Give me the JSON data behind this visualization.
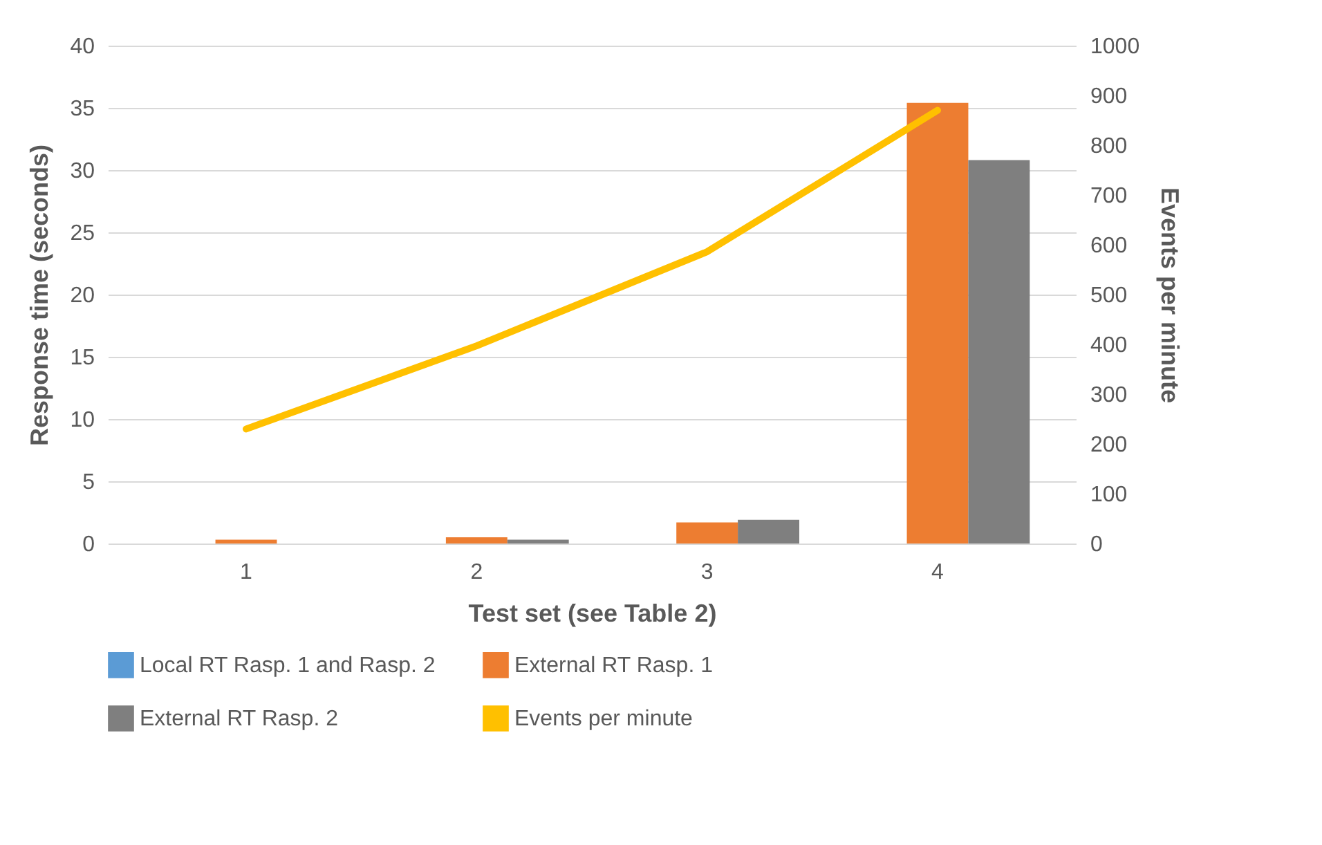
{
  "chart_data": {
    "type": "bar",
    "xlabel": "Test set (see Table 2)",
    "ylabel": "Response time (seconds)",
    "y2label": "Events per minute",
    "categories": [
      "1",
      "2",
      "3",
      "4"
    ],
    "series": [
      {
        "name": "Local RT Rasp. 1 and Rasp. 2",
        "color": "#5b9bd5",
        "values": [
          0,
          0,
          0,
          0
        ]
      },
      {
        "name": "External RT Rasp. 1",
        "color": "#ed7d31",
        "values": [
          0.3,
          0.5,
          1.7,
          35.4
        ]
      },
      {
        "name": "External RT Rasp. 2",
        "color": "#7f7f7f",
        "values": [
          0,
          0.3,
          1.9,
          30.8
        ]
      },
      {
        "name": "Events per minute",
        "color": "#ffc000",
        "type": "line",
        "axis": "y2",
        "values": [
          230,
          397,
          586,
          870
        ]
      }
    ],
    "ylim": [
      0,
      40
    ],
    "yticks": [
      0,
      5,
      10,
      15,
      20,
      25,
      30,
      35,
      40
    ],
    "y2lim": [
      0,
      1000
    ],
    "y2ticks": [
      0,
      100,
      200,
      300,
      400,
      500,
      600,
      700,
      800,
      900,
      1000
    ],
    "grid": "y",
    "legend": "bottom"
  }
}
